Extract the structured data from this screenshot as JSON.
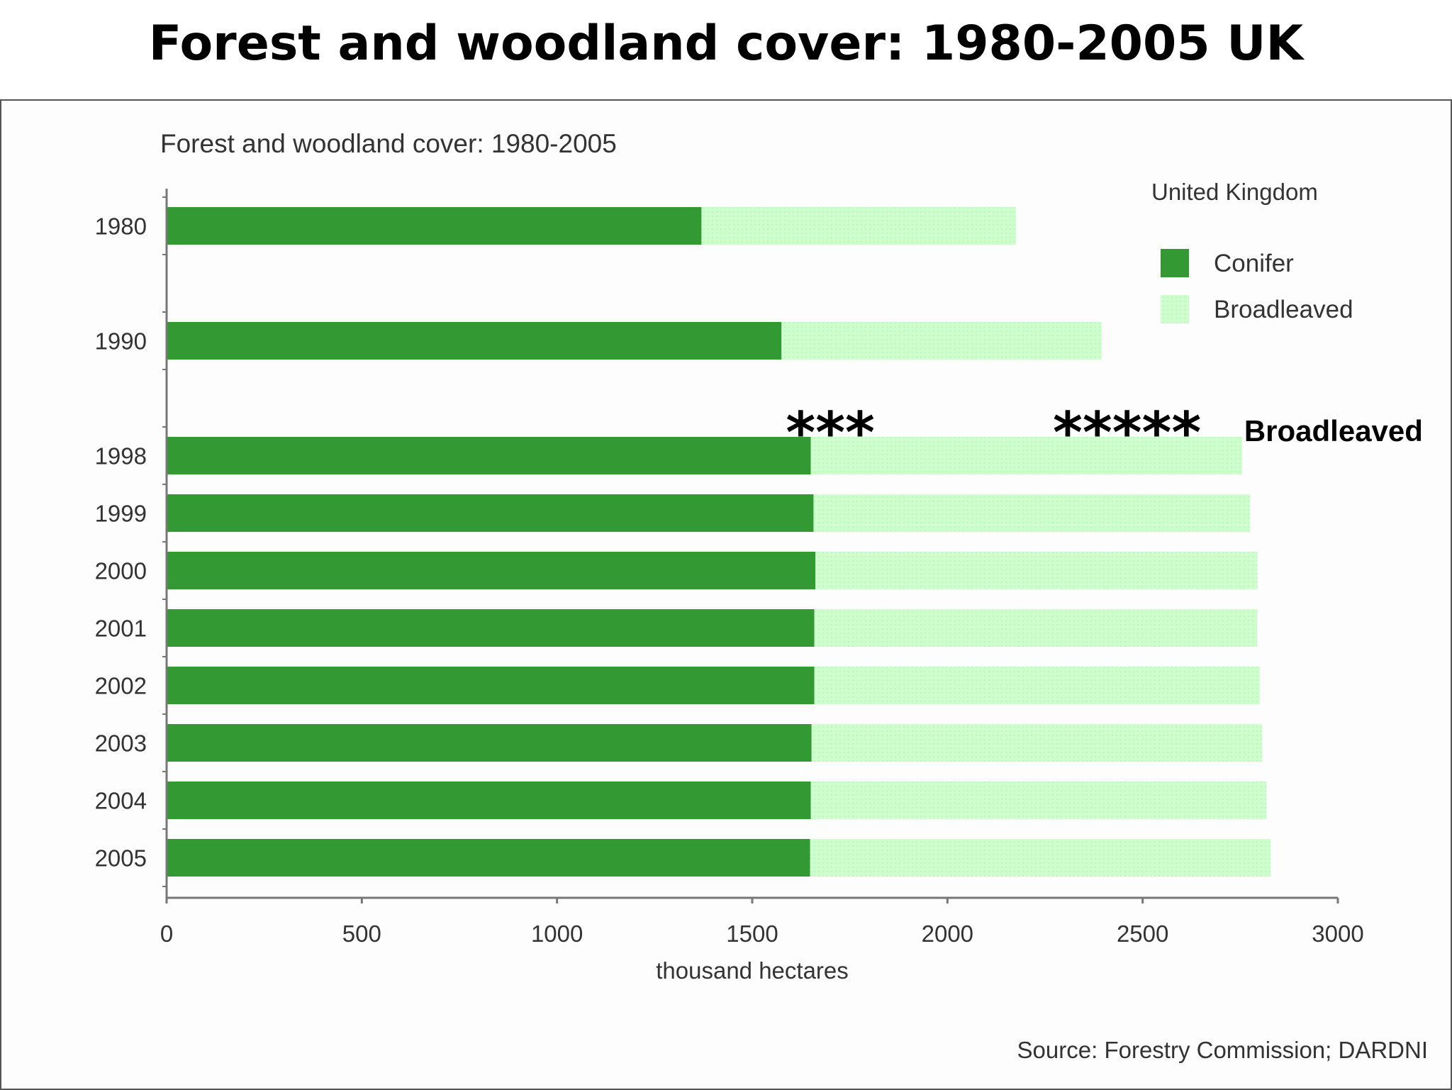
{
  "slide_title": "Forest and woodland cover: 1980-2005 UK",
  "chart_data": {
    "type": "bar",
    "orientation": "horizontal",
    "stacked": true,
    "title": "Forest and woodland cover: 1980-2005",
    "subtitle": "United Kingdom",
    "categories": [
      "1980",
      "1990",
      "1998",
      "1999",
      "2000",
      "2001",
      "2002",
      "2003",
      "2004",
      "2005"
    ],
    "category_slots": [
      0,
      2,
      4,
      5,
      6,
      7,
      8,
      9,
      10,
      11
    ],
    "slot_count": 12,
    "series": [
      {
        "name": "Conifer",
        "color": "#339933",
        "values": [
          1370,
          1575,
          1650,
          1657,
          1662,
          1659,
          1659,
          1652,
          1650,
          1648
        ]
      },
      {
        "name": "Broadleaved",
        "color": "#ccffcc",
        "values": [
          805,
          820,
          1105,
          1118,
          1132,
          1134,
          1141,
          1154,
          1167,
          1180
        ]
      }
    ],
    "xlabel": "thousand hectares",
    "ylabel": "",
    "xlim": [
      0,
      3000
    ],
    "xticks": [
      0,
      500,
      1000,
      1500,
      2000,
      2500,
      3000
    ],
    "grid": false,
    "legend_position": "top-right",
    "source": "Source: Forestry Commission; DARDNI",
    "annotations": [
      {
        "text": "***",
        "x": 1700,
        "style": "stars"
      },
      {
        "text": "*****",
        "x": 2460,
        "style": "stars"
      },
      {
        "text": "Broadleaved",
        "x": 2760,
        "style": "word"
      }
    ]
  }
}
